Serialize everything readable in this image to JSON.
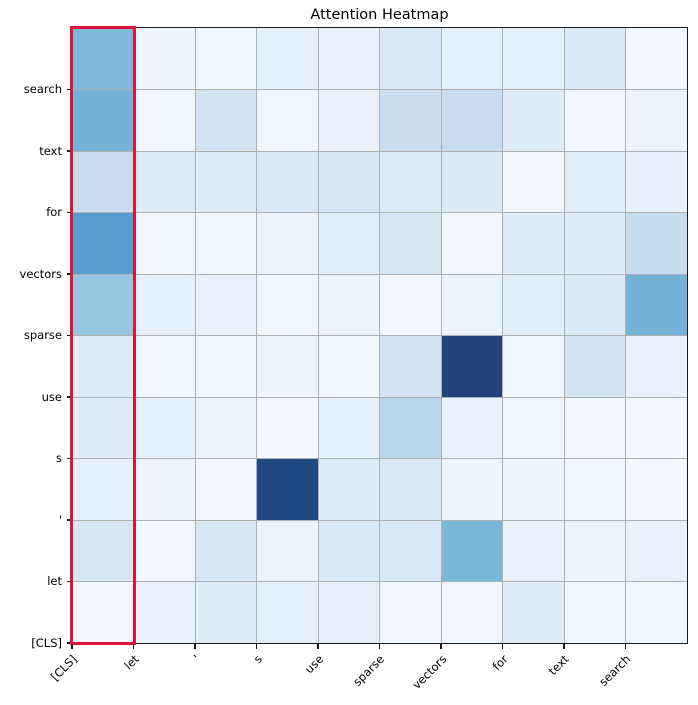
{
  "figure": {
    "background": "#ffffff"
  },
  "chart_data": {
    "type": "heatmap",
    "title": "Attention Heatmap",
    "xlabel": "",
    "ylabel": "",
    "tokens": [
      "[CLS]",
      "let",
      "'",
      "s",
      "use",
      "sparse",
      "vectors",
      "for",
      "text",
      "search"
    ],
    "x_tick_labels": [
      "[CLS]",
      "let",
      "'",
      "s",
      "use",
      "sparse",
      "vectors",
      "for",
      "text",
      "search"
    ],
    "y_tick_labels_top_to_bottom": [
      "search",
      "text",
      "for",
      "vectors",
      "sparse",
      "use",
      "s",
      "'",
      "let",
      "[CLS]"
    ],
    "colormap": "Blues",
    "value_range": [
      0,
      1
    ],
    "grid": true,
    "legend": "none",
    "matrix_rows_top_to_bottom": [
      [
        0.49,
        0.06,
        0.05,
        0.1,
        0.08,
        0.17,
        0.1,
        0.1,
        0.16,
        0.03
      ],
      [
        0.52,
        0.05,
        0.21,
        0.05,
        0.08,
        0.25,
        0.26,
        0.14,
        0.03,
        0.07
      ],
      [
        0.26,
        0.14,
        0.13,
        0.16,
        0.18,
        0.14,
        0.15,
        0.03,
        0.11,
        0.09
      ],
      [
        0.62,
        0.05,
        0.05,
        0.07,
        0.12,
        0.19,
        0.03,
        0.13,
        0.13,
        0.27
      ],
      [
        0.42,
        0.1,
        0.08,
        0.05,
        0.07,
        0.03,
        0.07,
        0.12,
        0.15,
        0.52
      ],
      [
        0.13,
        0.05,
        0.05,
        0.06,
        0.05,
        0.21,
        1.0,
        0.05,
        0.21,
        0.08
      ],
      [
        0.13,
        0.1,
        0.06,
        0.03,
        0.1,
        0.32,
        0.08,
        0.05,
        0.04,
        0.03
      ],
      [
        0.1,
        0.07,
        0.04,
        0.98,
        0.13,
        0.16,
        0.07,
        0.07,
        0.05,
        0.04
      ],
      [
        0.19,
        0.03,
        0.18,
        0.07,
        0.16,
        0.17,
        0.5,
        0.08,
        0.07,
        0.08
      ],
      [
        0.03,
        0.08,
        0.13,
        0.1,
        0.09,
        0.04,
        0.04,
        0.13,
        0.05,
        0.05
      ]
    ],
    "highlight_rect": {
      "target_column_label": "[CLS]",
      "color": "#dc143c"
    }
  },
  "colors": {
    "grid_line": "#b0b0b0",
    "spine": "#1a1a1a",
    "highlight": "#dc143c",
    "cmap_low": "#f7fbff",
    "cmap_high": "#08306b"
  }
}
